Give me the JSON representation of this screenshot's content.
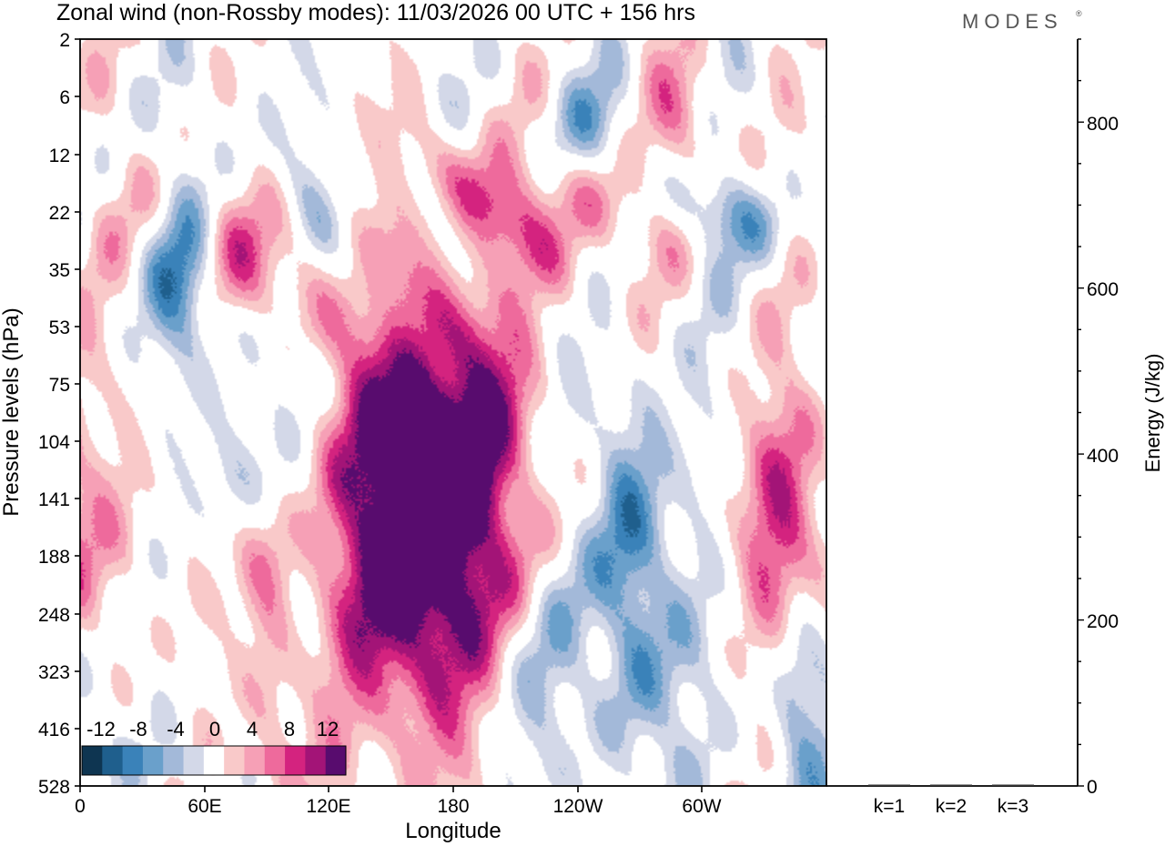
{
  "brand": "MODES",
  "chart_data": [
    {
      "type": "heatmap",
      "title": "Zonal wind (non-Rossby modes):  11/03/2026  00 UTC  + 156 hrs",
      "xlabel": "Longitude",
      "ylabel": "Pressure levels (hPa)",
      "x_ticks": [
        "0",
        "60E",
        "120E",
        "180",
        "120W",
        "60W"
      ],
      "x_tick_lon": [
        0,
        60,
        120,
        180,
        240,
        300
      ],
      "x_range": [
        0,
        360
      ],
      "y_ticks": [
        "2",
        "6",
        "12",
        "22",
        "35",
        "53",
        "75",
        "104",
        "141",
        "188",
        "248",
        "323",
        "416",
        "528"
      ],
      "colorbar": {
        "labels": [
          "-12",
          "-8",
          "-4",
          "0",
          "4",
          "8",
          "12"
        ],
        "label_values": [
          -12,
          -8,
          -4,
          0,
          4,
          8,
          12
        ],
        "levels": [
          -14,
          -12,
          -10,
          -8,
          -6,
          -4,
          -2,
          2,
          4,
          6,
          8,
          10,
          12,
          14
        ],
        "colors": [
          "#0e3551",
          "#1f5f8d",
          "#3a82b9",
          "#6aa0cb",
          "#a3b9d9",
          "#d3d8e8",
          "#ffffff",
          "#f9c9c9",
          "#f6a0b6",
          "#ee6a9c",
          "#d4237f",
          "#a31477",
          "#580c6e"
        ]
      },
      "features": [
        {
          "lon": 50,
          "lev": 3.9,
          "value": -9.5,
          "w": 12,
          "h": 1.2,
          "angle": 0
        },
        {
          "lon": 60,
          "lev": 3.5,
          "value": 5.0,
          "w": 26,
          "h": 0.8,
          "angle": 18
        },
        {
          "lon": 72,
          "lev": 7.5,
          "value": -4.5,
          "w": 12,
          "h": 0.9,
          "angle": 10
        },
        {
          "lon": 88,
          "lev": 9.1,
          "value": 5.0,
          "w": 10,
          "h": 0.8,
          "angle": -5
        },
        {
          "lon": 96,
          "lev": 5.4,
          "value": -2.5,
          "w": 22,
          "h": 0.6,
          "angle": 15
        },
        {
          "lon": 105,
          "lev": 4.4,
          "value": 4.0,
          "w": 24,
          "h": 0.9,
          "angle": 22
        },
        {
          "lon": 140,
          "lev": 4.0,
          "value": -7.0,
          "w": 34,
          "h": 0.5,
          "angle": 28
        },
        {
          "lon": 152,
          "lev": 4.2,
          "value": 7.0,
          "w": 26,
          "h": 0.5,
          "angle": 26
        },
        {
          "lon": 158,
          "lev": 8.6,
          "value": 10.0,
          "w": 28,
          "h": 2.5,
          "angle": 0
        },
        {
          "lon": 166,
          "lev": 8.8,
          "value": 10.0,
          "w": 24,
          "h": 2.4,
          "angle": 0
        },
        {
          "lon": 184,
          "lev": 7.0,
          "value": 8.0,
          "w": 26,
          "h": 1.7,
          "angle": 0
        },
        {
          "lon": 200,
          "lev": 3.0,
          "value": 7.0,
          "w": 30,
          "h": 0.5,
          "angle": 20
        },
        {
          "lon": 245,
          "lev": 2.9,
          "value": 5.0,
          "w": 30,
          "h": 0.6,
          "angle": 8
        },
        {
          "lon": 250,
          "lev": 1.5,
          "value": -4.0,
          "w": 16,
          "h": 0.6,
          "angle": 5
        },
        {
          "lon": 265,
          "lev": 8.7,
          "value": -9.0,
          "w": 12,
          "h": 2.0,
          "angle": 0
        },
        {
          "lon": 290,
          "lev": 1.6,
          "value": 6.0,
          "w": 12,
          "h": 0.9,
          "angle": -35
        },
        {
          "lon": 308,
          "lev": 3.0,
          "value": -7.0,
          "w": 20,
          "h": 0.5,
          "angle": 8
        },
        {
          "lon": 340,
          "lev": 8.9,
          "value": 10.5,
          "w": 14,
          "h": 1.8,
          "angle": 0
        },
        {
          "lon": 345,
          "lev": 10.7,
          "value": -7.5,
          "w": 10,
          "h": 1.3,
          "angle": 0
        },
        {
          "lon": 92,
          "lev": 11.6,
          "value": 5.5,
          "w": 10,
          "h": 1.5,
          "angle": 0
        },
        {
          "lon": 235,
          "lev": 11.2,
          "value": -3.0,
          "w": 60,
          "h": 1.5,
          "angle": 0
        },
        {
          "lon": 20,
          "lev": 9.5,
          "value": 3.5,
          "w": 14,
          "h": 3.0,
          "angle": 0
        },
        {
          "lon": 10,
          "lev": 12.5,
          "value": -2.5,
          "w": 30,
          "h": 1.4,
          "angle": 0
        }
      ]
    },
    {
      "type": "bar",
      "ylabel": "Energy (J/kg)",
      "categories": [
        "k=1",
        "k=2",
        "k=3"
      ],
      "values": [
        1,
        1.5,
        1
      ],
      "ylim": [
        0,
        900
      ],
      "y_ticks": [
        "200",
        "400",
        "600",
        "800"
      ],
      "y_tick_values": [
        200,
        400,
        600,
        800
      ]
    }
  ]
}
